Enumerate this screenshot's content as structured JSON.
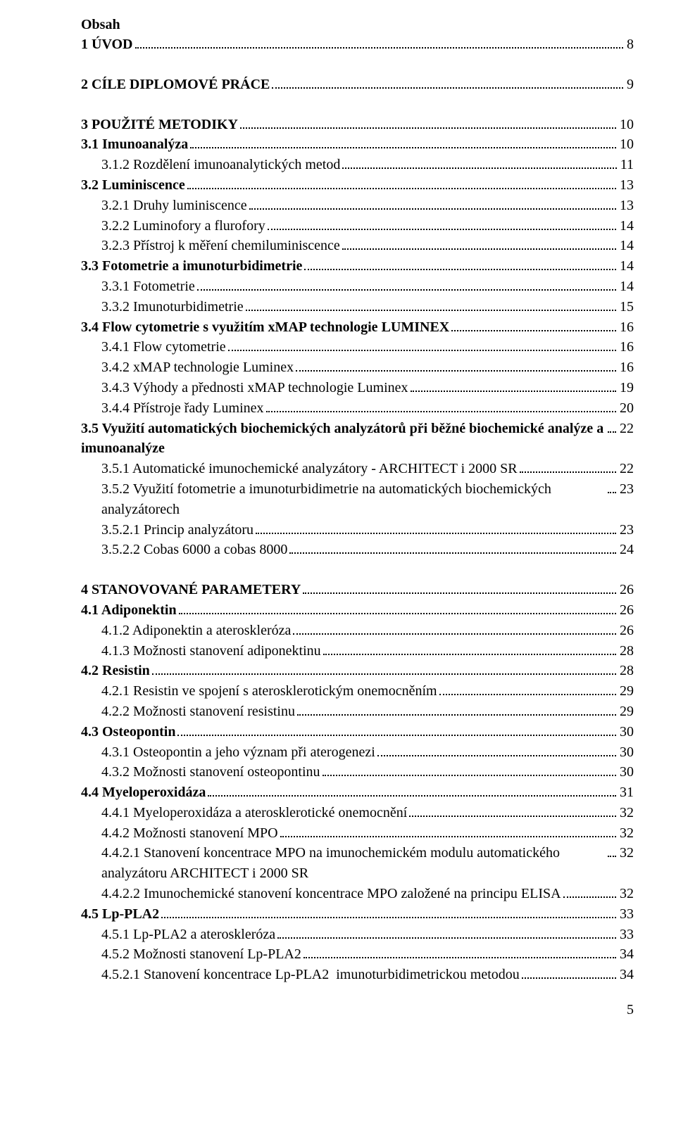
{
  "title": "Obsah",
  "pageNumber": "5",
  "entries": [
    {
      "label": "1 ÚVOD",
      "page": "8",
      "bold": true,
      "indent": 0,
      "spacerBefore": 0
    },
    {
      "label": "2 CÍLE DIPLOMOVÉ PRÁCE",
      "page": "9",
      "bold": true,
      "indent": 0,
      "spacerBefore": 1
    },
    {
      "label": "3 POUŽITÉ METODIKY",
      "page": "10",
      "bold": true,
      "indent": 0,
      "spacerBefore": 1
    },
    {
      "label": "3.1 Imunoanalýza",
      "page": "10",
      "bold": true,
      "indent": 0,
      "spacerBefore": 0
    },
    {
      "label": "3.1.2 Rozdělení imunoanalytických metod",
      "page": "11",
      "bold": false,
      "indent": 1,
      "spacerBefore": 0
    },
    {
      "label": "3.2 Luminiscence",
      "page": "13",
      "bold": true,
      "indent": 0,
      "spacerBefore": 0
    },
    {
      "label": "3.2.1 Druhy luminiscence",
      "page": "13",
      "bold": false,
      "indent": 1,
      "spacerBefore": 0
    },
    {
      "label": "3.2.2 Luminofory a flurofory",
      "page": "14",
      "bold": false,
      "indent": 1,
      "spacerBefore": 0
    },
    {
      "label": "3.2.3 Přístroj k měření chemiluminiscence",
      "page": "14",
      "bold": false,
      "indent": 1,
      "spacerBefore": 0
    },
    {
      "label": "3.3 Fotometrie a imunoturbidimetrie",
      "page": "14",
      "bold": true,
      "indent": 0,
      "spacerBefore": 0
    },
    {
      "label": "3.3.1 Fotometrie",
      "page": "14",
      "bold": false,
      "indent": 1,
      "spacerBefore": 0
    },
    {
      "label": "3.3.2 Imunoturbidimetrie",
      "page": "15",
      "bold": false,
      "indent": 1,
      "spacerBefore": 0
    },
    {
      "label": "3.4 Flow cytometrie s využitím xMAP technologie LUMINEX",
      "page": "16",
      "bold": true,
      "indent": 0,
      "spacerBefore": 0
    },
    {
      "label": "3.4.1 Flow cytometrie",
      "page": "16",
      "bold": false,
      "indent": 1,
      "spacerBefore": 0
    },
    {
      "label": "3.4.2 xMAP technologie Luminex",
      "page": "16",
      "bold": false,
      "indent": 1,
      "spacerBefore": 0
    },
    {
      "label": "3.4.3 Výhody a přednosti xMAP technologie Luminex",
      "page": "19",
      "bold": false,
      "indent": 1,
      "spacerBefore": 0
    },
    {
      "label": "3.4.4 Přístroje řady Luminex",
      "page": "20",
      "bold": false,
      "indent": 1,
      "spacerBefore": 0
    },
    {
      "label": "3.5 Využití automatických biochemických analyzátorů při běžné biochemické analýze a  imunoanalýze",
      "page": "22",
      "bold": true,
      "indent": 0,
      "spacerBefore": 0
    },
    {
      "label": "3.5.1 Automatické imunochemické analyzátory - ARCHITECT i 2000 SR",
      "page": "22",
      "bold": false,
      "indent": 1,
      "spacerBefore": 0
    },
    {
      "label": "3.5.2 Využití fotometrie a imunoturbidimetrie na automatických biochemických analyzátorech",
      "page": "23",
      "bold": false,
      "indent": 1,
      "spacerBefore": 0
    },
    {
      "label": "3.5.2.1 Princip analyzátoru",
      "page": "23",
      "bold": false,
      "indent": 1,
      "spacerBefore": 0
    },
    {
      "label": "3.5.2.2 Cobas 6000 a cobas 8000",
      "page": "24",
      "bold": false,
      "indent": 1,
      "spacerBefore": 0
    },
    {
      "label": "4 STANOVOVANÉ PARAMETERY",
      "page": "26",
      "bold": true,
      "indent": 0,
      "spacerBefore": 1
    },
    {
      "label": "4.1 Adiponektin",
      "page": "26",
      "bold": true,
      "indent": 0,
      "spacerBefore": 0
    },
    {
      "label": "4.1.2 Adiponektin a ateroskleróza",
      "page": "26",
      "bold": false,
      "indent": 1,
      "spacerBefore": 0
    },
    {
      "label": "4.1.3 Možnosti stanovení adiponektinu",
      "page": "28",
      "bold": false,
      "indent": 1,
      "spacerBefore": 0
    },
    {
      "label": "4.2 Resistin",
      "page": "28",
      "bold": true,
      "indent": 0,
      "spacerBefore": 0
    },
    {
      "label": "4.2.1 Resistin ve spojení s aterosklerotickým onemocněním",
      "page": "29",
      "bold": false,
      "indent": 1,
      "spacerBefore": 0
    },
    {
      "label": "4.2.2 Možnosti stanovení resistinu",
      "page": "29",
      "bold": false,
      "indent": 1,
      "spacerBefore": 0
    },
    {
      "label": "4.3 Osteopontin",
      "page": "30",
      "bold": true,
      "indent": 0,
      "spacerBefore": 0
    },
    {
      "label": "4.3.1 Osteopontin a jeho význam při aterogenezi",
      "page": "30",
      "bold": false,
      "indent": 1,
      "spacerBefore": 0
    },
    {
      "label": "4.3.2 Možnosti stanovení osteopontinu",
      "page": "30",
      "bold": false,
      "indent": 1,
      "spacerBefore": 0
    },
    {
      "label": "4.4 Myeloperoxidáza",
      "page": "31",
      "bold": true,
      "indent": 0,
      "spacerBefore": 0
    },
    {
      "label": "4.4.1 Myeloperoxidáza a aterosklerotické onemocnění",
      "page": "32",
      "bold": false,
      "indent": 1,
      "spacerBefore": 0
    },
    {
      "label": "4.4.2 Možnosti stanovení MPO",
      "page": "32",
      "bold": false,
      "indent": 1,
      "spacerBefore": 0
    },
    {
      "label": "4.4.2.1 Stanovení koncentrace MPO na imunochemickém modulu automatického analyzátoru ARCHITECT i 2000 SR",
      "page": "32",
      "bold": false,
      "indent": 1,
      "spacerBefore": 0
    },
    {
      "label": "4.4.2.2 Imunochemické stanovení koncentrace MPO založené na principu ELISA\n",
      "page": "32",
      "bold": false,
      "indent": 1,
      "spacerBefore": 0
    },
    {
      "label": "4.5 Lp-PLA2",
      "page": "33",
      "bold": true,
      "indent": 0,
      "spacerBefore": 0
    },
    {
      "label": "4.5.1 Lp-PLA2 a ateroskleróza",
      "page": "33",
      "bold": false,
      "indent": 1,
      "spacerBefore": 0
    },
    {
      "label": "4.5.2 Možnosti stanovení Lp-PLA2",
      "page": "34",
      "bold": false,
      "indent": 1,
      "spacerBefore": 0
    },
    {
      "label": "4.5.2.1 Stanovení koncentrace Lp-PLA2  imunoturbidimetrickou metodou",
      "page": "34",
      "bold": false,
      "indent": 1,
      "spacerBefore": 0
    }
  ]
}
